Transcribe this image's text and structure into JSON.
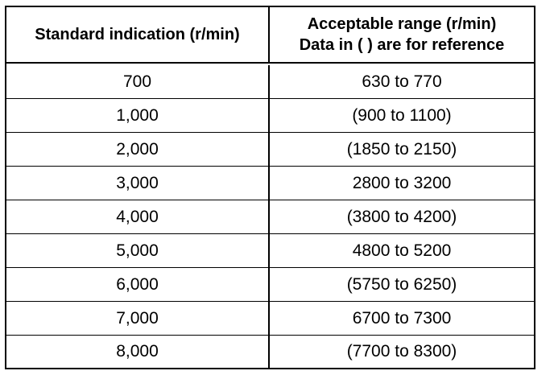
{
  "table": {
    "headers": {
      "col1": "Standard indication (r/min)",
      "col2_line1": "Acceptable range (r/min)",
      "col2_line2": "Data in ( ) are for reference"
    },
    "rows": [
      {
        "standard": "700",
        "range": "630 to 770"
      },
      {
        "standard": "1,000",
        "range": "(900 to 1100)"
      },
      {
        "standard": "2,000",
        "range": "(1850 to 2150)"
      },
      {
        "standard": "3,000",
        "range": "2800 to 3200"
      },
      {
        "standard": "4,000",
        "range": "(3800 to 4200)"
      },
      {
        "standard": "5,000",
        "range": "4800 to 5200"
      },
      {
        "standard": "6,000",
        "range": "(5750 to 6250)"
      },
      {
        "standard": "7,000",
        "range": "6700 to 7300"
      },
      {
        "standard": "8,000",
        "range": "(7700 to 8300)"
      }
    ]
  }
}
